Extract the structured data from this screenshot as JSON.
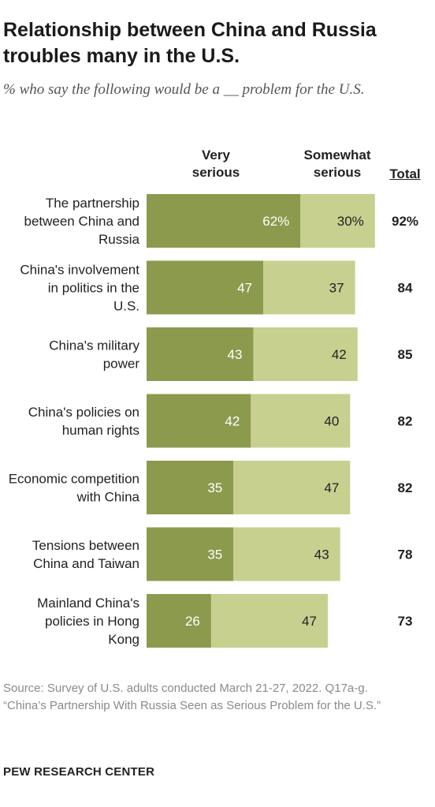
{
  "header": {
    "title": "Relationship between China and Russia troubles many in the U.S.",
    "subtitle": "% who say the following would be a __ problem for the U.S."
  },
  "columns": {
    "very": "Very serious",
    "somewhat": "Somewhat serious",
    "total": "Total"
  },
  "chart_data": {
    "type": "bar",
    "orientation": "horizontal",
    "stacked": true,
    "categories": [
      "The partnership between China and Russia",
      "China's involvement in politics in the U.S.",
      "China's military power",
      "China's policies on human rights",
      "Economic competition with China",
      "Tensions between China and Taiwan",
      "Mainland China's policies in Hong Kong"
    ],
    "series": [
      {
        "name": "Very serious",
        "values": [
          62,
          47,
          43,
          42,
          35,
          35,
          26
        ],
        "color": "#8c9a4e"
      },
      {
        "name": "Somewhat serious",
        "values": [
          30,
          37,
          42,
          40,
          47,
          43,
          47
        ],
        "color": "#c7d08f"
      }
    ],
    "value_labels": {
      "very": [
        "62%",
        "47",
        "43",
        "42",
        "35",
        "35",
        "26"
      ],
      "somewhat": [
        "30%",
        "37",
        "42",
        "40",
        "47",
        "43",
        "47"
      ]
    },
    "totals": [
      "92%",
      "84",
      "85",
      "82",
      "82",
      "78",
      "73"
    ],
    "xlim": [
      0,
      100
    ],
    "grid": false,
    "legend": "top column headers"
  },
  "footer": {
    "source": "Source: Survey of U.S. adults conducted March 21-27, 2022. Q17a-g.",
    "report": "“China’s Partnership With Russia Seen as Serious Problem for the U.S.”",
    "logo": "PEW RESEARCH CENTER"
  }
}
